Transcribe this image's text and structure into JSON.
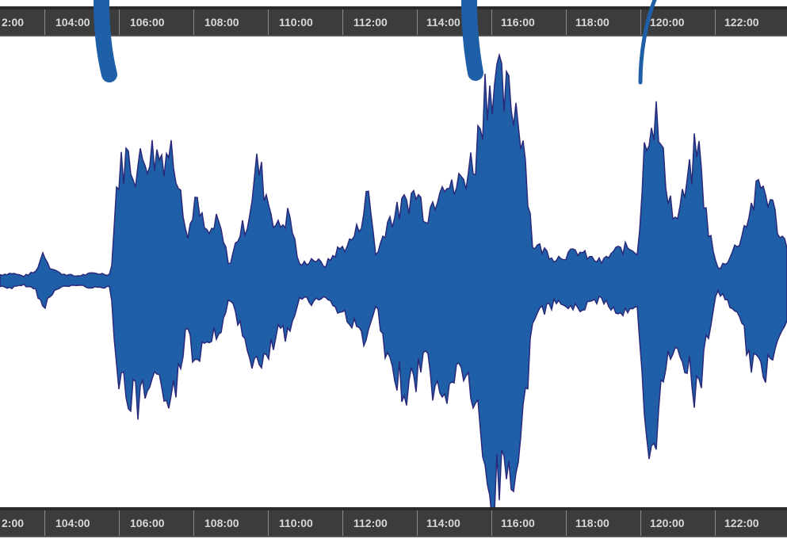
{
  "timeline": {
    "tick_labels": [
      "2:00",
      "104:00",
      "106:00",
      "108:00",
      "110:00",
      "112:00",
      "114:00",
      "116:00",
      "118:00",
      "120:00",
      "122:00"
    ]
  },
  "waveform": {
    "color": "#1f5fa8",
    "edge_color": "#2a2a7a"
  },
  "markers": {
    "color": "#1f5fa8",
    "count": 3
  }
}
